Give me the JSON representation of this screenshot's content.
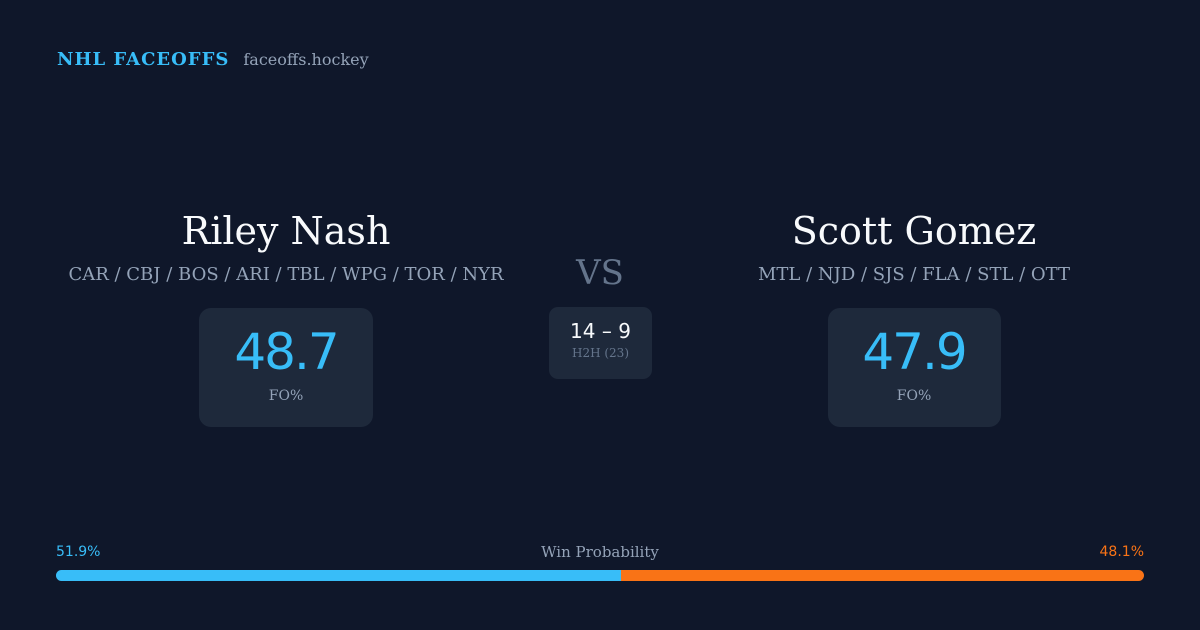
{
  "brand": {
    "name": "NHL FACEOFFS",
    "domain": "faceoffs.hockey"
  },
  "player_left": {
    "name": "Riley Nash",
    "teams": "CAR / CBJ / BOS / ARI / TBL / WPG / TOR / NYR",
    "fo_pct": "48.7",
    "fo_label": "FO%"
  },
  "player_right": {
    "name": "Scott Gomez",
    "teams": "MTL / NJD / SJS / FLA / STL / OTT",
    "fo_pct": "47.9",
    "fo_label": "FO%"
  },
  "vs_label": "VS",
  "h2h": {
    "score": "14 – 9",
    "label": "H2H (23)"
  },
  "win_probability": {
    "title": "Win Probability",
    "left_label": "51.9%",
    "right_label": "48.1%",
    "left_value": 0.519,
    "right_value": 0.481,
    "left_color": "#38bdf8",
    "right_color": "#f97316"
  }
}
